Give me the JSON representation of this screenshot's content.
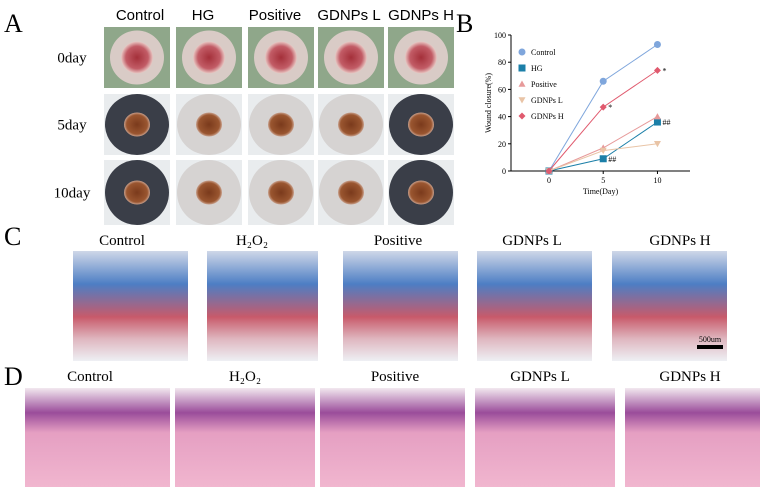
{
  "panel_a": {
    "label": "A",
    "columns": [
      "Control",
      "HG",
      "Positive",
      "GDNPs L",
      "GDNPs H"
    ],
    "rows": [
      "0day",
      "5day",
      "10day"
    ]
  },
  "panel_b": {
    "label": "B"
  },
  "panel_c": {
    "label": "C",
    "columns": [
      "Control",
      "H₂O₂",
      "Positive",
      "GDNPs L",
      "GDNPs H"
    ],
    "scale_bar": "500um"
  },
  "panel_d": {
    "label": "D",
    "columns": [
      "Control",
      "H₂O₂",
      "Positive",
      "GDNPs L",
      "GDNPs H"
    ]
  },
  "chart_data": {
    "type": "line",
    "xlabel": "Time(Day)",
    "ylabel": "Wound closure(%)",
    "x": [
      0,
      5,
      10
    ],
    "xlim": [
      -3.5,
      13
    ],
    "xticks": [
      0,
      5,
      10
    ],
    "ylim": [
      0,
      100
    ],
    "yticks": [
      0,
      20,
      40,
      60,
      80,
      100
    ],
    "series": [
      {
        "name": "Control",
        "color": "#7fa6dc",
        "marker": "circle",
        "values": [
          0,
          66,
          93
        ]
      },
      {
        "name": "HG",
        "color": "#1b7fa8",
        "marker": "square",
        "values": [
          0,
          9,
          36
        ]
      },
      {
        "name": "Positive",
        "color": "#e79a9a",
        "marker": "triangle",
        "values": [
          0,
          17,
          40
        ]
      },
      {
        "name": "GDNPs L",
        "color": "#e9c4a6",
        "marker": "triangle-down",
        "values": [
          0,
          15,
          20
        ]
      },
      {
        "name": "GDNPs H",
        "color": "#e05a6e",
        "marker": "diamond",
        "values": [
          0,
          47,
          74
        ]
      }
    ],
    "annotations": [
      {
        "text": "*",
        "x": 5,
        "y": 47
      },
      {
        "text": "*",
        "x": 10,
        "y": 74
      },
      {
        "text": "##",
        "x": 5,
        "y": 9
      },
      {
        "text": "##",
        "x": 10,
        "y": 36
      }
    ]
  }
}
